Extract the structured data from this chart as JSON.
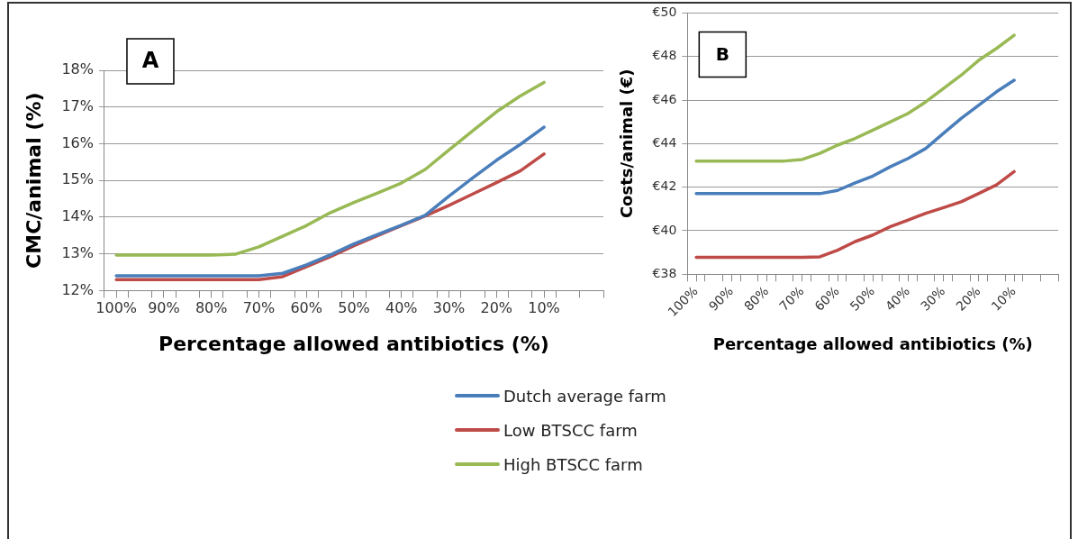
{
  "chart_data": [
    {
      "type": "line",
      "title": "A",
      "xlabel": "Percentage allowed antibiotics (%)",
      "ylabel": "CMC/animal (%)",
      "x": [
        100,
        95,
        90,
        85,
        80,
        75,
        70,
        65,
        60,
        55,
        50,
        45,
        40,
        35,
        30,
        25,
        20,
        15,
        10
      ],
      "series": [
        {
          "name": "Dutch average farm",
          "color": "#4a7ebb",
          "values": [
            12.4,
            12.4,
            12.4,
            12.4,
            12.4,
            12.4,
            12.4,
            12.47,
            12.7,
            12.97,
            13.27,
            13.53,
            13.78,
            14.05,
            14.57,
            15.07,
            15.55,
            15.98,
            16.45
          ]
        },
        {
          "name": "Low BTSCC farm",
          "color": "#be4b48",
          "values": [
            12.3,
            12.3,
            12.3,
            12.3,
            12.3,
            12.3,
            12.3,
            12.38,
            12.65,
            12.92,
            13.22,
            13.5,
            13.77,
            14.03,
            14.32,
            14.63,
            14.94,
            15.26,
            15.72
          ]
        },
        {
          "name": "High BTSCC farm",
          "color": "#98b954",
          "values": [
            12.97,
            12.97,
            12.97,
            12.97,
            12.97,
            12.99,
            13.19,
            13.48,
            13.77,
            14.12,
            14.4,
            14.66,
            14.93,
            15.3,
            15.83,
            16.35,
            16.87,
            17.3,
            17.67
          ]
        }
      ],
      "xlim": [
        102.5,
        -2.5
      ],
      "xticks": [
        {
          "value": 102.5,
          "label": null
        },
        {
          "value": 100,
          "label": "100%"
        },
        {
          "value": 97.5,
          "label": null
        },
        {
          "value": 92.5,
          "label": null
        },
        {
          "value": 90,
          "label": "90%"
        },
        {
          "value": 87.5,
          "label": null
        },
        {
          "value": 82.5,
          "label": null
        },
        {
          "value": 80,
          "label": "80%"
        },
        {
          "value": 77.5,
          "label": null
        },
        {
          "value": 72.5,
          "label": null
        },
        {
          "value": 70,
          "label": "70%"
        },
        {
          "value": 67.5,
          "label": null
        },
        {
          "value": 62.5,
          "label": null
        },
        {
          "value": 60,
          "label": "60%"
        },
        {
          "value": 57.5,
          "label": null
        },
        {
          "value": 52.5,
          "label": null
        },
        {
          "value": 50,
          "label": "50%"
        },
        {
          "value": 47.5,
          "label": null
        },
        {
          "value": 42.5,
          "label": null
        },
        {
          "value": 40,
          "label": "40%"
        },
        {
          "value": 37.5,
          "label": null
        },
        {
          "value": 32.5,
          "label": null
        },
        {
          "value": 30,
          "label": "30%"
        },
        {
          "value": 27.5,
          "label": null
        },
        {
          "value": 22.5,
          "label": null
        },
        {
          "value": 20,
          "label": "20%"
        },
        {
          "value": 17.5,
          "label": null
        },
        {
          "value": 12.5,
          "label": null
        },
        {
          "value": 10,
          "label": "10%"
        },
        {
          "value": 7.5,
          "label": null
        },
        {
          "value": 2.5,
          "label": null
        },
        {
          "value": -2.5,
          "label": null
        }
      ],
      "ylim": [
        12,
        18
      ],
      "yticks": [
        {
          "value": 12,
          "label": "12%"
        },
        {
          "value": 13,
          "label": "13%"
        },
        {
          "value": 14,
          "label": "14%"
        },
        {
          "value": 15,
          "label": "15%"
        },
        {
          "value": 16,
          "label": "16%"
        },
        {
          "value": 17,
          "label": "17%"
        },
        {
          "value": 18,
          "label": "18%"
        }
      ],
      "grid": "y",
      "legend": "bottom",
      "marker": "none",
      "line_style": "solid"
    },
    {
      "type": "line",
      "title": "B",
      "xlabel": "Percentage allowed antibiotics (%)",
      "ylabel": "Costs/animal (€)",
      "x": [
        100,
        95,
        90,
        85,
        80,
        75,
        70,
        65,
        60,
        55,
        50,
        45,
        40,
        35,
        30,
        25,
        20,
        15,
        10
      ],
      "series": [
        {
          "color": "#4a7ebb",
          "values": [
            41.7,
            41.7,
            41.7,
            41.7,
            41.7,
            41.7,
            41.7,
            41.7,
            41.85,
            42.2,
            42.51,
            42.94,
            43.32,
            43.78,
            44.47,
            45.16,
            45.77,
            46.38,
            46.91
          ]
        },
        {
          "color": "#be4b48",
          "values": [
            38.77,
            38.77,
            38.77,
            38.77,
            38.77,
            38.77,
            38.77,
            38.8,
            39.1,
            39.5,
            39.8,
            40.19,
            40.49,
            40.8,
            41.06,
            41.33,
            41.71,
            42.1,
            42.71
          ]
        },
        {
          "color": "#98b954",
          "values": [
            43.2,
            43.2,
            43.2,
            43.2,
            43.2,
            43.2,
            43.27,
            43.55,
            43.93,
            44.24,
            44.62,
            45.0,
            45.39,
            45.92,
            46.53,
            47.14,
            47.83,
            48.37,
            48.98
          ]
        }
      ],
      "xlim": [
        102.5,
        -2.5
      ],
      "xticks": [
        {
          "value": 102.5,
          "label": null
        },
        {
          "value": 100,
          "label": "100%"
        },
        {
          "value": 97.5,
          "label": null
        },
        {
          "value": 92.5,
          "label": null
        },
        {
          "value": 90,
          "label": "90%"
        },
        {
          "value": 87.5,
          "label": null
        },
        {
          "value": 82.5,
          "label": null
        },
        {
          "value": 80,
          "label": "80%"
        },
        {
          "value": 77.5,
          "label": null
        },
        {
          "value": 72.5,
          "label": null
        },
        {
          "value": 70,
          "label": "70%"
        },
        {
          "value": 67.5,
          "label": null
        },
        {
          "value": 62.5,
          "label": null
        },
        {
          "value": 60,
          "label": "60%"
        },
        {
          "value": 57.5,
          "label": null
        },
        {
          "value": 52.5,
          "label": null
        },
        {
          "value": 50,
          "label": "50%"
        },
        {
          "value": 47.5,
          "label": null
        },
        {
          "value": 42.5,
          "label": null
        },
        {
          "value": 40,
          "label": "40%"
        },
        {
          "value": 37.5,
          "label": null
        },
        {
          "value": 32.5,
          "label": null
        },
        {
          "value": 30,
          "label": "30%"
        },
        {
          "value": 27.5,
          "label": null
        },
        {
          "value": 22.5,
          "label": null
        },
        {
          "value": 20,
          "label": "20%"
        },
        {
          "value": 17.5,
          "label": null
        },
        {
          "value": 12.5,
          "label": null
        },
        {
          "value": 10,
          "label": "10%"
        },
        {
          "value": 7.5,
          "label": null
        },
        {
          "value": 2.5,
          "label": null
        },
        {
          "value": -2.5,
          "label": null
        }
      ],
      "ylim": [
        38,
        50
      ],
      "yticks": [
        {
          "value": 38,
          "label": "€38"
        },
        {
          "value": 40,
          "label": "€40"
        },
        {
          "value": 42,
          "label": "€42"
        },
        {
          "value": 44,
          "label": "€44"
        },
        {
          "value": 46,
          "label": "€46"
        },
        {
          "value": 48,
          "label": "€48"
        },
        {
          "value": 50,
          "label": "€50"
        }
      ],
      "grid": "y",
      "marker": "none",
      "line_style": "solid"
    }
  ]
}
